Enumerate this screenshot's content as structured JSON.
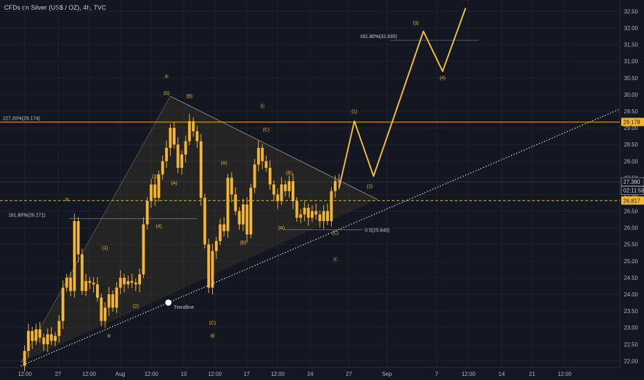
{
  "header": {
    "title": "CFDs on Silver (US$ / OZ), 4h, TVC"
  },
  "colors": {
    "background": "#131722",
    "grid": "#1f2330",
    "candle": "#f5b52c",
    "projection": "#f9c02b",
    "wedge_fill": "#3a3528",
    "trendline": "#d1d4dc",
    "fib_line": "#f5b52c",
    "current_price": "#f5b52c"
  },
  "chart_data": {
    "type": "candlestick",
    "title": "CFDs on Silver (US$ / OZ), 4h, TVC",
    "ylim": [
      21.8,
      32.8
    ],
    "y_ticks": [
      "22.00",
      "22.50",
      "23.00",
      "23.50",
      "24.00",
      "24.50",
      "25.00",
      "25.50",
      "26.00",
      "26.50",
      "27.00",
      "27.50",
      "28.00",
      "28.50",
      "29.00",
      "29.50",
      "30.00",
      "30.50",
      "31.00",
      "31.50",
      "32.00",
      "32.50"
    ],
    "x_ticks": [
      "12:00",
      "27",
      "12:00",
      "Aug",
      "12:00",
      "10",
      "12:00",
      "17",
      "12:00",
      "24",
      "27",
      "Sep",
      "7",
      "12:00",
      "14",
      "21",
      "12:00"
    ],
    "price_badges": [
      {
        "label": "29.178",
        "value": 29.178,
        "style": "filled"
      },
      {
        "label": "27.380",
        "value": 27.38,
        "style": "outline"
      },
      {
        "label": "02:11:58",
        "value": 27.12,
        "style": "outline"
      },
      {
        "label": "26.817",
        "value": 26.817,
        "style": "filled"
      }
    ],
    "fib_levels": [
      {
        "label": "227.20%(29.174)",
        "value": 29.174
      },
      {
        "label": "161.80%(26.271)",
        "value": 26.271
      },
      {
        "label": "0.5(25.940)",
        "value": 25.94
      },
      {
        "label": "161.80%(31.635)",
        "value": 31.635
      }
    ],
    "trendline_label": "Trendline",
    "price_path": [
      [
        0,
        21.85
      ],
      [
        1,
        22.3
      ],
      [
        2,
        22.9
      ],
      [
        3,
        22.6
      ],
      [
        4,
        22.95
      ],
      [
        5,
        22.7
      ],
      [
        6,
        22.5
      ],
      [
        7,
        22.8
      ],
      [
        8,
        22.6
      ],
      [
        9,
        22.75
      ],
      [
        10,
        23.2
      ],
      [
        11,
        24.2
      ],
      [
        12,
        24.5
      ],
      [
        13,
        24.1
      ],
      [
        14,
        26.2
      ],
      [
        15,
        25.2
      ],
      [
        16,
        24.1
      ],
      [
        17,
        24.4
      ],
      [
        18,
        24.35
      ],
      [
        19,
        24.3
      ],
      [
        20,
        23.9
      ],
      [
        21,
        23.2
      ],
      [
        22,
        23.6
      ],
      [
        23,
        24.0
      ],
      [
        24,
        23.6
      ],
      [
        25,
        24.2
      ],
      [
        26,
        24.5
      ],
      [
        27,
        24.3
      ],
      [
        28,
        24.4
      ],
      [
        29,
        24.35
      ],
      [
        30,
        24.3
      ],
      [
        31,
        24.6
      ],
      [
        32,
        26.1
      ],
      [
        33,
        26.8
      ],
      [
        34,
        27.3
      ],
      [
        35,
        26.9
      ],
      [
        36,
        27.6
      ],
      [
        37,
        28.0
      ],
      [
        38,
        28.4
      ],
      [
        39,
        29.0
      ],
      [
        40,
        28.5
      ],
      [
        41,
        27.8
      ],
      [
        42,
        28.2
      ],
      [
        43,
        28.6
      ],
      [
        44,
        29.2
      ],
      [
        45,
        28.9
      ],
      [
        46,
        28.6
      ],
      [
        47,
        26.9
      ],
      [
        48,
        25.5
      ],
      [
        49,
        24.2
      ],
      [
        50,
        25.3
      ],
      [
        51,
        25.6
      ],
      [
        52,
        26.1
      ],
      [
        53,
        25.9
      ],
      [
        54,
        27.5
      ],
      [
        55,
        27.0
      ],
      [
        56,
        26.5
      ],
      [
        57,
        26.1
      ],
      [
        58,
        26.7
      ],
      [
        59,
        25.8
      ],
      [
        60,
        27.2
      ],
      [
        61,
        27.9
      ],
      [
        62,
        28.4
      ],
      [
        63,
        28.0
      ],
      [
        64,
        27.8
      ],
      [
        65,
        27.3
      ],
      [
        66,
        27.0
      ],
      [
        67,
        26.8
      ],
      [
        68,
        27.3
      ],
      [
        69,
        27.1
      ],
      [
        70,
        27.4
      ],
      [
        71,
        26.8
      ],
      [
        72,
        26.3
      ],
      [
        73,
        26.4
      ],
      [
        74,
        26.6
      ],
      [
        75,
        26.3
      ],
      [
        76,
        26.5
      ],
      [
        77,
        26.4
      ],
      [
        78,
        26.2
      ],
      [
        79,
        26.5
      ],
      [
        80,
        26.2
      ],
      [
        81,
        27.1
      ],
      [
        82,
        27.4
      ],
      [
        83,
        27.38
      ]
    ],
    "projection": [
      [
        83,
        27.2
      ],
      [
        87,
        29.2
      ],
      [
        92,
        27.55
      ],
      [
        105,
        31.9
      ],
      [
        110,
        30.7
      ],
      [
        116,
        32.6
      ]
    ],
    "waves": [
      {
        "label": "③",
        "i": 12,
        "v": 26.8
      },
      {
        "label": "(1)",
        "i": 22,
        "v": 25.35
      },
      {
        "label": "(2)",
        "i": 30,
        "v": 23.6
      },
      {
        "label": "(3)",
        "i": 35,
        "v": 27.5
      },
      {
        "label": "(4)",
        "i": 36,
        "v": 26.0
      },
      {
        "label": "(A)",
        "i": 40,
        "v": 27.3
      },
      {
        "label": "⑤",
        "i": 38,
        "v": 30.5
      },
      {
        "label": "(5)",
        "i": 38,
        "v": 30.0
      },
      {
        "label": "(B)",
        "i": 44,
        "v": 29.9
      },
      {
        "label": "(A)",
        "i": 53,
        "v": 27.9
      },
      {
        "label": "(B)",
        "i": 58,
        "v": 25.5
      },
      {
        "label": "(C)",
        "i": 50,
        "v": 23.1
      },
      {
        "label": "Ⓦ",
        "i": 50,
        "v": 22.7
      },
      {
        "label": "Ⓧ",
        "i": 63,
        "v": 29.6
      },
      {
        "label": "(C)",
        "i": 64,
        "v": 28.9
      },
      {
        "label": "(B)",
        "i": 70,
        "v": 27.6
      },
      {
        "label": "(A)",
        "i": 68,
        "v": 25.95
      },
      {
        "label": "(C)",
        "i": 82,
        "v": 25.8
      },
      {
        "label": "Ⓨ",
        "i": 82,
        "v": 25.0
      },
      {
        "label": "④",
        "i": 23,
        "v": 22.7
      },
      {
        "label": "(1)",
        "i": 87,
        "v": 29.45
      },
      {
        "label": "(2)",
        "i": 91,
        "v": 27.2
      },
      {
        "label": "(3)",
        "i": 103,
        "v": 32.1
      },
      {
        "label": "(4)",
        "i": 110,
        "v": 30.45
      },
      {
        "label": "(5)",
        "i": 116,
        "v": 32.85
      }
    ]
  }
}
